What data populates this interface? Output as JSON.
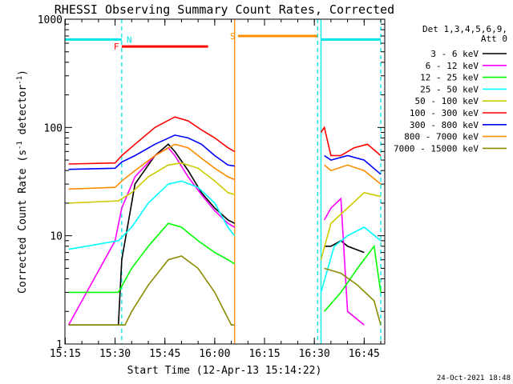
{
  "chart_data": {
    "type": "line",
    "title": "RHESSI Observing Summary Count Rates, Corrected",
    "xlabel": "Start Time (12-Apr-13 15:14:22)",
    "ylabel": "Corrected Count Rate (s",
    "ylabel_sup1": "-1",
    "ylabel_mid": " detector",
    "ylabel_sup2": "-1",
    "ylabel_end": ")",
    "y_scale": "log",
    "ylim": [
      1,
      1000
    ],
    "xlim": [
      "15:15",
      "16:51"
    ],
    "x_ticks": [
      "15:15",
      "15:30",
      "15:45",
      "16:00",
      "16:15",
      "16:30",
      "16:45"
    ],
    "y_ticks": [
      "1",
      "10",
      "100",
      "1000"
    ],
    "footer_date": "24-Oct-2021 18:48",
    "legend_header": [
      "Det 1,3,4,5,6,9,",
      "Att 0"
    ],
    "markers": [
      {
        "label": "N",
        "color": "#00e5e5",
        "start": "15:15",
        "end": "15:32",
        "y": 650
      },
      {
        "label": "F",
        "color": "#ff0000",
        "start": "15:32",
        "end": "15:58",
        "y": 560
      },
      {
        "label": "S",
        "color": "#ff8c00",
        "start": "16:07",
        "end": "16:31",
        "y": 700
      },
      {
        "label": "",
        "color": "#00e5e5",
        "start": "16:32",
        "end": "16:50",
        "y": 650
      }
    ],
    "vlines": [
      {
        "time": "15:32",
        "color": "#00e5e5",
        "dash": true
      },
      {
        "time": "16:06",
        "color": "#ff8c00",
        "dash": false
      },
      {
        "time": "16:31",
        "color": "#00e5e5",
        "dash": true
      },
      {
        "time": "16:32",
        "color": "#00e5e5",
        "dash": false
      },
      {
        "time": "16:50",
        "color": "#00e5e5",
        "dash": true
      }
    ],
    "data_gap": [
      "16:06",
      "16:32"
    ],
    "series": [
      {
        "name": "3 - 6 keV",
        "color": "#000000",
        "t": [
          "15:16",
          "15:31",
          "15:32",
          "15:36",
          "15:42",
          "15:46",
          "15:48",
          "15:52",
          "15:56",
          "16:00",
          "16:04",
          "16:06",
          "16:33",
          "16:35",
          "16:38",
          "16:40",
          "16:45"
        ],
        "y": [
          1.5,
          1.5,
          6,
          30,
          55,
          70,
          60,
          40,
          25,
          18,
          14,
          13,
          8,
          8,
          9,
          8,
          7
        ]
      },
      {
        "name": "6 - 12 keV",
        "color": "#ff00ff",
        "t": [
          "15:16",
          "15:30",
          "15:32",
          "15:36",
          "15:42",
          "15:46",
          "15:48",
          "15:52",
          "15:56",
          "16:00",
          "16:04",
          "16:06",
          "16:33",
          "16:35",
          "16:38",
          "16:40",
          "16:45"
        ],
        "y": [
          1.5,
          9,
          18,
          35,
          55,
          65,
          55,
          35,
          24,
          17,
          13,
          12,
          14,
          18,
          22,
          2,
          1.5
        ]
      },
      {
        "name": "12 - 25 keV",
        "color": "#00ff00",
        "t": [
          "15:16",
          "15:31",
          "15:35",
          "15:40",
          "15:46",
          "15:50",
          "15:55",
          "16:00",
          "16:04",
          "16:06",
          "16:33",
          "16:38",
          "16:43",
          "16:48",
          "16:50"
        ],
        "y": [
          3,
          3,
          5,
          8,
          13,
          12,
          9,
          7,
          6,
          5.5,
          2,
          3,
          5,
          8,
          3
        ]
      },
      {
        "name": "25 - 50 keV",
        "color": "#00ffff",
        "t": [
          "15:16",
          "15:31",
          "15:35",
          "15:40",
          "15:46",
          "15:50",
          "15:55",
          "16:00",
          "16:04",
          "16:06",
          "16:32",
          "16:36",
          "16:40",
          "16:45",
          "16:50"
        ],
        "y": [
          7.5,
          9,
          12,
          20,
          30,
          32,
          28,
          20,
          12,
          10,
          3,
          8,
          10,
          12,
          9
        ]
      },
      {
        "name": "50 - 100 keV",
        "color": "#cccc00",
        "t": [
          "15:16",
          "15:31",
          "15:35",
          "15:40",
          "15:46",
          "15:50",
          "15:55",
          "16:00",
          "16:04",
          "16:06",
          "16:32",
          "16:35",
          "16:40",
          "16:45",
          "16:50"
        ],
        "y": [
          20,
          21,
          25,
          35,
          45,
          47,
          42,
          32,
          25,
          24,
          6,
          13,
          18,
          25,
          23
        ]
      },
      {
        "name": "100 - 300 keV",
        "color": "#ff0000",
        "t": [
          "15:16",
          "15:30",
          "15:32",
          "15:36",
          "15:42",
          "15:48",
          "15:52",
          "15:56",
          "16:00",
          "16:04",
          "16:06",
          "16:32",
          "16:33",
          "16:35",
          "16:38",
          "16:42",
          "16:46",
          "16:50"
        ],
        "y": [
          46,
          47,
          55,
          70,
          100,
          125,
          115,
          95,
          80,
          65,
          60,
          90,
          100,
          55,
          55,
          65,
          70,
          55
        ]
      },
      {
        "name": "300 - 800 keV",
        "color": "#0000ff",
        "t": [
          "15:16",
          "15:30",
          "15:32",
          "15:36",
          "15:42",
          "15:48",
          "15:52",
          "15:56",
          "16:00",
          "16:04",
          "16:06",
          "16:33",
          "16:35",
          "16:40",
          "16:45",
          "16:50"
        ],
        "y": [
          41,
          42,
          48,
          55,
          70,
          85,
          80,
          70,
          55,
          45,
          44,
          55,
          50,
          55,
          50,
          37
        ]
      },
      {
        "name": "800 - 7000 keV",
        "color": "#ff8c00",
        "t": [
          "15:16",
          "15:30",
          "15:32",
          "15:36",
          "15:42",
          "15:48",
          "15:52",
          "15:56",
          "16:00",
          "16:04",
          "16:06",
          "16:33",
          "16:35",
          "16:40",
          "16:45",
          "16:50"
        ],
        "y": [
          27,
          28,
          32,
          40,
          55,
          70,
          65,
          52,
          42,
          35,
          33,
          45,
          40,
          45,
          40,
          30
        ]
      },
      {
        "name": "7000 - 15000 keV",
        "color": "#8b8b00",
        "t": [
          "15:16",
          "15:33",
          "15:35",
          "15:40",
          "15:46",
          "15:50",
          "15:55",
          "16:00",
          "16:05",
          "16:06",
          "16:33",
          "16:38",
          "16:43",
          "16:48",
          "16:50"
        ],
        "y": [
          1.5,
          1.5,
          2,
          3.5,
          6,
          6.5,
          5,
          3,
          1.5,
          1.5,
          5,
          4.5,
          3.5,
          2.5,
          1.5
        ]
      }
    ]
  }
}
